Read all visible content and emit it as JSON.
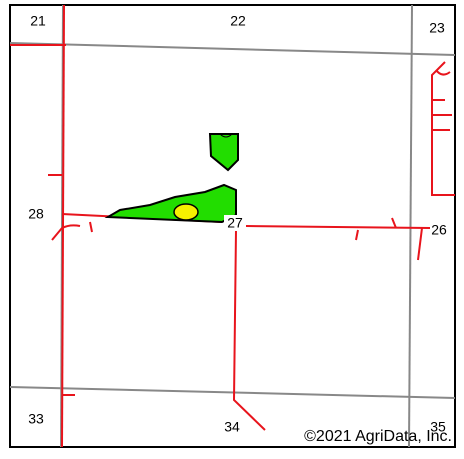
{
  "section_labels": [
    "21",
    "22",
    "23",
    "28",
    "27",
    "26",
    "33",
    "34",
    "35"
  ],
  "copyright": "©2021 AgriData, Inc."
}
